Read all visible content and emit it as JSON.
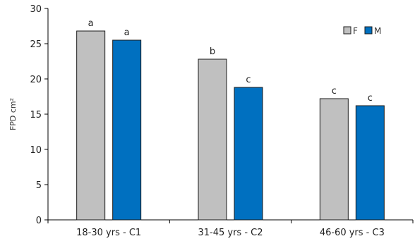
{
  "chart_data": {
    "type": "bar",
    "categories": [
      "18-30 yrs - C1",
      "31-45 yrs - C2",
      "46-60 yrs - C3"
    ],
    "series": [
      {
        "name": "F",
        "color": "#c0c0c0",
        "values": [
          26.8,
          22.8,
          17.2
        ],
        "labels": [
          "a",
          "b",
          "c"
        ]
      },
      {
        "name": "M",
        "color": "#0070c0",
        "values": [
          25.5,
          18.8,
          16.2
        ],
        "labels": [
          "a",
          "c",
          "c"
        ]
      }
    ],
    "ylabel": "FPD cm²",
    "xlabel": "",
    "title": "",
    "ylim": [
      0,
      30
    ],
    "yticks": [
      0,
      5,
      10,
      15,
      20,
      25,
      30
    ],
    "legend_position": "top-right",
    "grid": false
  }
}
